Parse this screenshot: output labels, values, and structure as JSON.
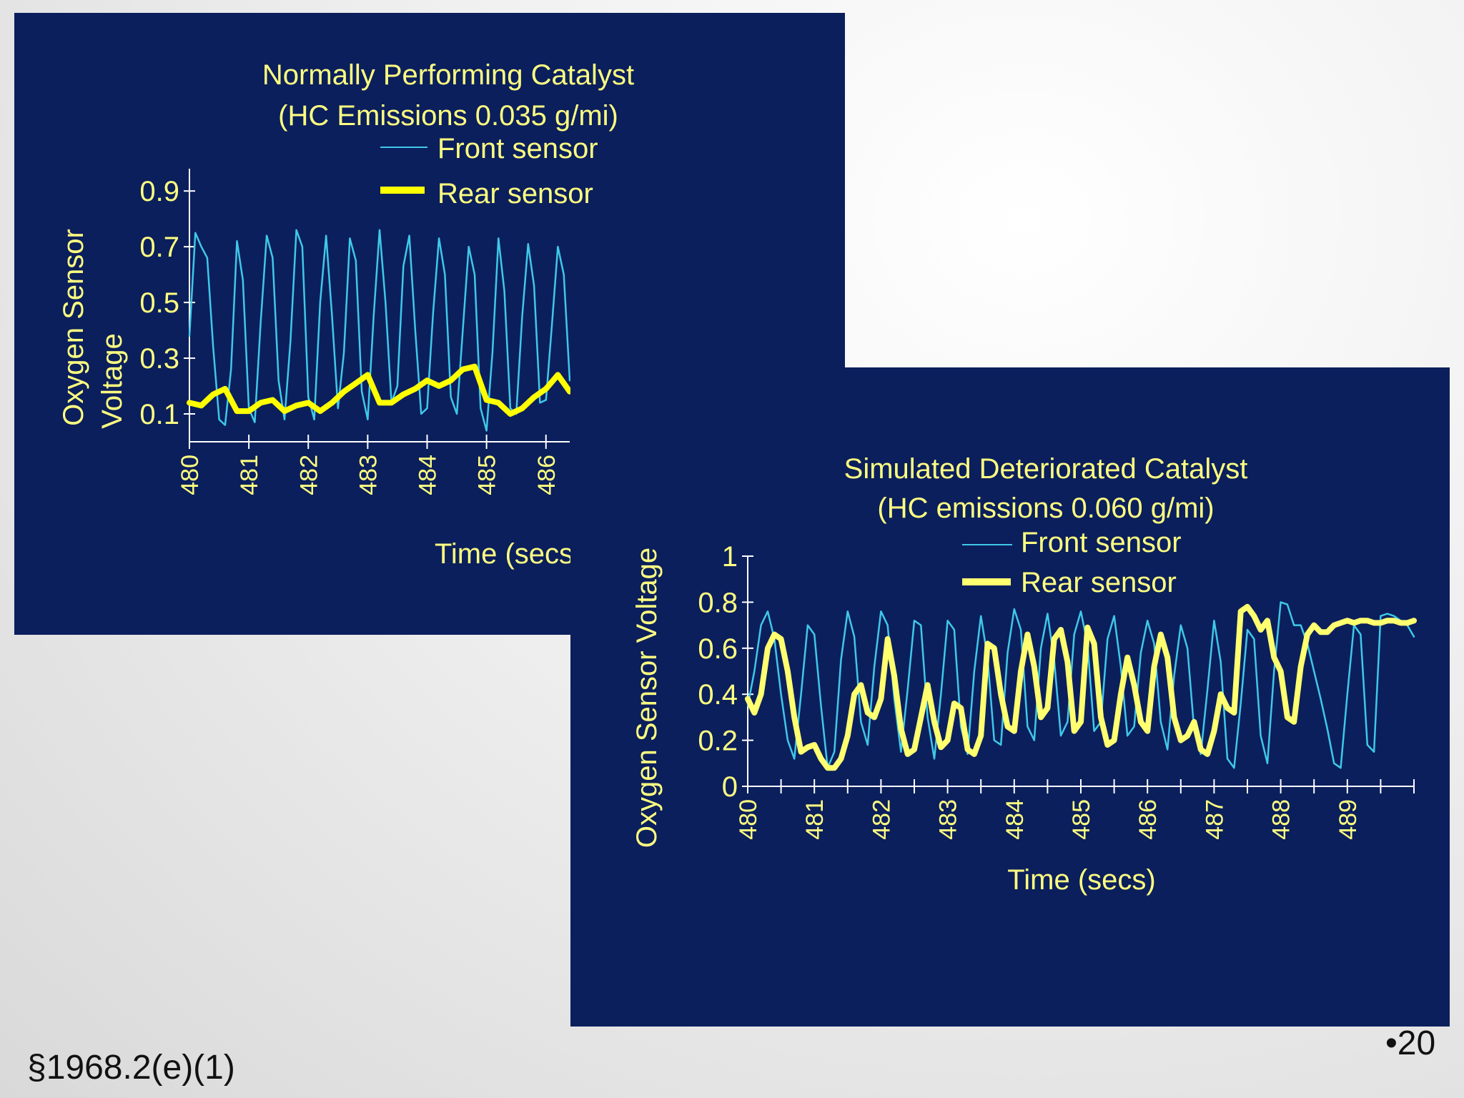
{
  "chart_data": [
    {
      "type": "line",
      "title": "Normally Performing Catalyst",
      "subtitle": "(HC Emissions 0.035 g/mi)",
      "xlabel": "Time (secs",
      "ylabel_lines": [
        "Oxygen Sensor",
        "Voltage"
      ],
      "xlim": [
        480,
        486.4
      ],
      "ylim": [
        0,
        0.98
      ],
      "yticks": [
        0.1,
        0.3,
        0.5,
        0.7,
        0.9
      ],
      "ytick_labels": [
        "0.1",
        "0.3",
        "0.5",
        "0.7",
        "0.9"
      ],
      "xticks": [
        480,
        481,
        482,
        483,
        484,
        485,
        486
      ],
      "xtick_labels": [
        "480",
        "481",
        "482",
        "483",
        "484",
        "485",
        "486"
      ],
      "legend": "top-right",
      "series": [
        {
          "name": "Front sensor",
          "color": "#3fc8e8",
          "x": [
            480,
            480.1,
            480.2,
            480.3,
            480.4,
            480.5,
            480.6,
            480.7,
            480.8,
            480.9,
            481,
            481.1,
            481.2,
            481.3,
            481.4,
            481.5,
            481.6,
            481.7,
            481.8,
            481.9,
            482,
            482.1,
            482.2,
            482.3,
            482.4,
            482.5,
            482.6,
            482.7,
            482.8,
            482.9,
            483,
            483.1,
            483.2,
            483.3,
            483.4,
            483.5,
            483.6,
            483.7,
            483.8,
            483.9,
            484,
            484.1,
            484.2,
            484.3,
            484.4,
            484.5,
            484.6,
            484.7,
            484.8,
            484.9,
            485,
            485.1,
            485.2,
            485.3,
            485.4,
            485.5,
            485.6,
            485.7,
            485.8,
            485.9,
            486,
            486.1,
            486.2,
            486.3,
            486.4
          ],
          "y": [
            0.38,
            0.75,
            0.7,
            0.66,
            0.34,
            0.08,
            0.06,
            0.26,
            0.72,
            0.58,
            0.12,
            0.07,
            0.43,
            0.74,
            0.66,
            0.22,
            0.08,
            0.36,
            0.76,
            0.7,
            0.16,
            0.08,
            0.5,
            0.74,
            0.45,
            0.12,
            0.32,
            0.73,
            0.65,
            0.18,
            0.08,
            0.45,
            0.76,
            0.5,
            0.14,
            0.2,
            0.63,
            0.74,
            0.4,
            0.1,
            0.12,
            0.46,
            0.73,
            0.6,
            0.16,
            0.1,
            0.4,
            0.7,
            0.6,
            0.12,
            0.04,
            0.32,
            0.73,
            0.54,
            0.12,
            0.1,
            0.45,
            0.71,
            0.56,
            0.14,
            0.15,
            0.42,
            0.7,
            0.6,
            0.22
          ]
        },
        {
          "name": "Rear sensor",
          "color": "#ffff00",
          "x": [
            480,
            480.2,
            480.4,
            480.6,
            480.8,
            481,
            481.2,
            481.4,
            481.6,
            481.8,
            482,
            482.2,
            482.4,
            482.6,
            482.8,
            483,
            483.2,
            483.4,
            483.6,
            483.8,
            484,
            484.2,
            484.4,
            484.6,
            484.8,
            485,
            485.2,
            485.4,
            485.6,
            485.8,
            486,
            486.2,
            486.4
          ],
          "y": [
            0.14,
            0.13,
            0.17,
            0.19,
            0.11,
            0.11,
            0.14,
            0.15,
            0.11,
            0.13,
            0.14,
            0.11,
            0.14,
            0.18,
            0.21,
            0.24,
            0.14,
            0.14,
            0.17,
            0.19,
            0.22,
            0.2,
            0.22,
            0.26,
            0.27,
            0.15,
            0.14,
            0.1,
            0.12,
            0.16,
            0.19,
            0.24,
            0.18
          ]
        }
      ]
    },
    {
      "type": "line",
      "title": "Simulated Deteriorated Catalyst",
      "subtitle": "(HC emissions 0.060 g/mi)",
      "xlabel": "Time (secs)",
      "ylabel": "Oxygen Sensor Voltage",
      "xlim": [
        480,
        490
      ],
      "ylim": [
        0,
        1
      ],
      "yticks": [
        0,
        0.2,
        0.4,
        0.6,
        0.8,
        1
      ],
      "ytick_labels": [
        "0",
        "0.2",
        "0.4",
        "0.6",
        "0.8",
        "1"
      ],
      "xticks": [
        480,
        481,
        482,
        483,
        484,
        485,
        486,
        487,
        488,
        489
      ],
      "xtick_labels": [
        "480",
        "481",
        "482",
        "483",
        "484",
        "485",
        "486",
        "487",
        "488",
        "489"
      ],
      "legend": "top-right",
      "series": [
        {
          "name": "Front sensor",
          "color": "#3fc8e8",
          "x": [
            480,
            480.1,
            480.2,
            480.3,
            480.4,
            480.5,
            480.6,
            480.7,
            480.8,
            480.9,
            481,
            481.1,
            481.2,
            481.3,
            481.4,
            481.5,
            481.6,
            481.7,
            481.8,
            481.9,
            482,
            482.1,
            482.2,
            482.3,
            482.4,
            482.5,
            482.6,
            482.7,
            482.8,
            482.9,
            483,
            483.1,
            483.2,
            483.3,
            483.4,
            483.5,
            483.6,
            483.7,
            483.8,
            483.9,
            484,
            484.1,
            484.2,
            484.3,
            484.4,
            484.5,
            484.6,
            484.7,
            484.8,
            484.9,
            485,
            485.1,
            485.2,
            485.3,
            485.4,
            485.5,
            485.6,
            485.7,
            485.8,
            485.9,
            486,
            486.1,
            486.2,
            486.3,
            486.4,
            486.5,
            486.6,
            486.7,
            486.8,
            486.9,
            487,
            487.1,
            487.2,
            487.3,
            487.4,
            487.5,
            487.6,
            487.7,
            487.8,
            487.9,
            488,
            488.1,
            488.2,
            488.3,
            488.4,
            488.5,
            488.6,
            488.7,
            488.8,
            488.9,
            489,
            489.1,
            489.2,
            489.3,
            489.4,
            489.5,
            489.6,
            489.7,
            489.8,
            489.9,
            490
          ],
          "y": [
            0.35,
            0.5,
            0.7,
            0.76,
            0.64,
            0.4,
            0.2,
            0.12,
            0.4,
            0.7,
            0.66,
            0.35,
            0.08,
            0.15,
            0.55,
            0.76,
            0.65,
            0.28,
            0.18,
            0.52,
            0.76,
            0.7,
            0.38,
            0.15,
            0.42,
            0.72,
            0.7,
            0.3,
            0.12,
            0.4,
            0.72,
            0.68,
            0.26,
            0.14,
            0.5,
            0.74,
            0.56,
            0.2,
            0.18,
            0.58,
            0.77,
            0.68,
            0.26,
            0.2,
            0.6,
            0.75,
            0.55,
            0.22,
            0.28,
            0.66,
            0.76,
            0.62,
            0.24,
            0.28,
            0.64,
            0.74,
            0.52,
            0.22,
            0.26,
            0.58,
            0.72,
            0.62,
            0.28,
            0.16,
            0.48,
            0.7,
            0.6,
            0.25,
            0.14,
            0.42,
            0.72,
            0.54,
            0.12,
            0.08,
            0.36,
            0.68,
            0.64,
            0.22,
            0.1,
            0.5,
            0.8,
            0.79,
            0.7,
            0.7,
            0.62,
            0.5,
            0.38,
            0.25,
            0.1,
            0.08,
            0.4,
            0.7,
            0.66,
            0.18,
            0.15,
            0.74,
            0.75,
            0.74,
            0.72,
            0.7,
            0.65
          ]
        },
        {
          "name": "Rear sensor",
          "color": "#ffff70",
          "x": [
            480,
            480.1,
            480.2,
            480.3,
            480.4,
            480.5,
            480.6,
            480.7,
            480.8,
            480.9,
            481,
            481.1,
            481.2,
            481.3,
            481.4,
            481.5,
            481.6,
            481.7,
            481.8,
            481.9,
            482,
            482.1,
            482.2,
            482.3,
            482.4,
            482.5,
            482.6,
            482.7,
            482.8,
            482.9,
            483,
            483.1,
            483.2,
            483.3,
            483.4,
            483.5,
            483.6,
            483.7,
            483.8,
            483.9,
            484,
            484.1,
            484.2,
            484.3,
            484.4,
            484.5,
            484.6,
            484.7,
            484.8,
            484.9,
            485,
            485.1,
            485.2,
            485.3,
            485.4,
            485.5,
            485.6,
            485.7,
            485.8,
            485.9,
            486,
            486.1,
            486.2,
            486.3,
            486.4,
            486.5,
            486.6,
            486.7,
            486.8,
            486.9,
            487,
            487.1,
            487.2,
            487.3,
            487.4,
            487.5,
            487.6,
            487.7,
            487.8,
            487.9,
            488,
            488.1,
            488.2,
            488.3,
            488.4,
            488.5,
            488.6,
            488.7,
            488.8,
            488.9,
            489,
            489.1,
            489.2,
            489.3,
            489.4,
            489.5,
            489.6,
            489.7,
            489.8,
            489.9,
            490
          ],
          "y": [
            0.38,
            0.32,
            0.4,
            0.6,
            0.66,
            0.64,
            0.5,
            0.3,
            0.15,
            0.17,
            0.18,
            0.12,
            0.08,
            0.08,
            0.12,
            0.22,
            0.4,
            0.44,
            0.32,
            0.3,
            0.38,
            0.64,
            0.48,
            0.25,
            0.14,
            0.16,
            0.3,
            0.44,
            0.28,
            0.17,
            0.2,
            0.36,
            0.34,
            0.16,
            0.14,
            0.22,
            0.62,
            0.6,
            0.4,
            0.26,
            0.24,
            0.5,
            0.66,
            0.52,
            0.3,
            0.34,
            0.64,
            0.68,
            0.54,
            0.24,
            0.28,
            0.69,
            0.62,
            0.3,
            0.18,
            0.2,
            0.4,
            0.56,
            0.44,
            0.28,
            0.24,
            0.52,
            0.66,
            0.56,
            0.3,
            0.2,
            0.22,
            0.28,
            0.16,
            0.14,
            0.24,
            0.4,
            0.34,
            0.32,
            0.76,
            0.78,
            0.74,
            0.68,
            0.72,
            0.56,
            0.5,
            0.3,
            0.28,
            0.52,
            0.66,
            0.7,
            0.67,
            0.67,
            0.7,
            0.71,
            0.72,
            0.71,
            0.72,
            0.72,
            0.71,
            0.71,
            0.72,
            0.72,
            0.71,
            0.71,
            0.72
          ]
        }
      ]
    }
  ],
  "footer": {
    "section_ref": "§1968.2(e)(1)",
    "page_number": "•20"
  }
}
